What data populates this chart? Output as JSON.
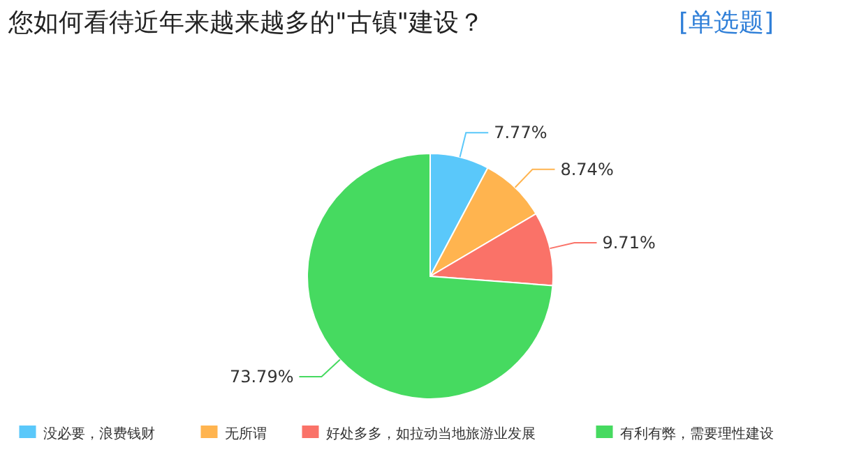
{
  "chart_data": {
    "type": "pie",
    "title": "您如何看待近年来越来越多的\"古镇\"建设？",
    "subtitle": "[单选题]",
    "categories": [
      "没必要，浪费钱财",
      "无所谓",
      "好处多多，如拉动当地旅游业发展",
      "有利有弊，需要理性建设"
    ],
    "values": [
      7.77,
      8.74,
      9.71,
      73.79
    ],
    "colors": [
      "#5ac8fa",
      "#ffb44f",
      "#fa7268",
      "#46da60"
    ],
    "value_labels": [
      "7.77%",
      "8.74%",
      "9.71%",
      "73.79%"
    ],
    "legend": "bottom"
  }
}
